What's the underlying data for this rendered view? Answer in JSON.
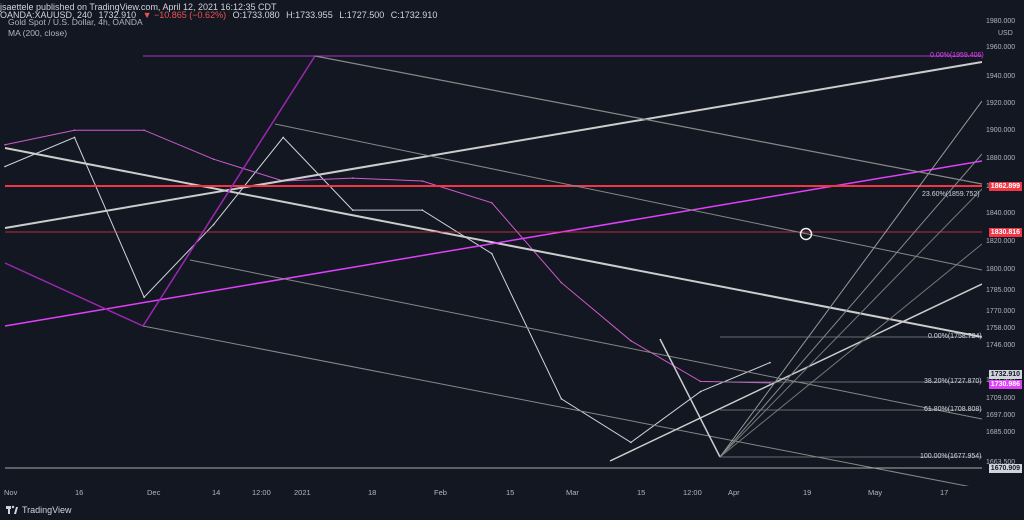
{
  "header": {
    "publisher": "jsaettele published on TradingView.com, April 12, 2021 16:12:35 CDT",
    "symbol": "OANDA:XAUUSD, 240",
    "last": "1732.910",
    "change": "▼ −10.865 (−0.62%)",
    "o": "O:1733.080",
    "h": "H:1733.955",
    "l": "L:1727.500",
    "c": "C:1732.910"
  },
  "legend": {
    "title": "Gold Spot / U.S. Dollar, 4h, OANDA",
    "ma": "MA (200, close)"
  },
  "price_axis": {
    "currency": "USD",
    "ticks": [
      "1980.000",
      "1960.000",
      "1940.000",
      "1920.000",
      "1900.000",
      "1880.000",
      "1860.000",
      "1840.000",
      "1820.000",
      "1800.000",
      "1785.000",
      "1770.000",
      "1758.000",
      "1746.000",
      "1721.500",
      "1709.000",
      "1697.000",
      "1685.000",
      "1663.500"
    ],
    "tags": {
      "r1": "1862.899",
      "r2": "1830.816",
      "last": "1732.910",
      "ma": "1730.986",
      "low": "1670.909"
    }
  },
  "time_axis": {
    "labels": [
      "Nov",
      "16",
      "Dec",
      "14",
      "12:00",
      "2021",
      "18",
      "Feb",
      "15",
      "Mar",
      "15",
      "12:00",
      "Apr",
      "19",
      "May",
      "17"
    ]
  },
  "fib_labels": {
    "upper_0": "0.00%(1959.406)",
    "upper_236": "23.60%(1859.752)",
    "lower_0": "0.00%(1758.724)",
    "lower_382": "38.20%(1727.870)",
    "lower_618": "61.80%(1708.808)",
    "lower_100": "100.00%(1677.954)"
  },
  "chart_data": {
    "type": "line",
    "title": "Gold Spot / U.S. Dollar, 4h, OANDA",
    "x": [
      "Nov",
      "16",
      "Dec",
      "14",
      "2021",
      "18",
      "Feb",
      "15",
      "Mar",
      "15",
      "Apr",
      "12"
    ],
    "series": [
      {
        "name": "",
        "values": [
          1880,
          1900,
          1790,
          1840,
          1900,
          1850,
          1850,
          1820,
          1720,
          1690,
          1725,
          1745
        ]
      },
      {
        "name": "MA (200, close)",
        "values": [
          1895,
          1905,
          1905,
          1885,
          1870,
          1872,
          1870,
          1855,
          1800,
          1760,
          1732,
          1731
        ]
      }
    ],
    "ylim": [
      1660,
      1985
    ],
    "levels": {
      "resistance_1": 1862.899,
      "resistance_2": 1830.816,
      "low": 1670.909
    }
  },
  "footer": {
    "brand": "TradingView"
  },
  "colors": {
    "background": "#131722",
    "red_level": "#f23645",
    "magenta": "#e040fb",
    "ma": "#d05bd0"
  }
}
